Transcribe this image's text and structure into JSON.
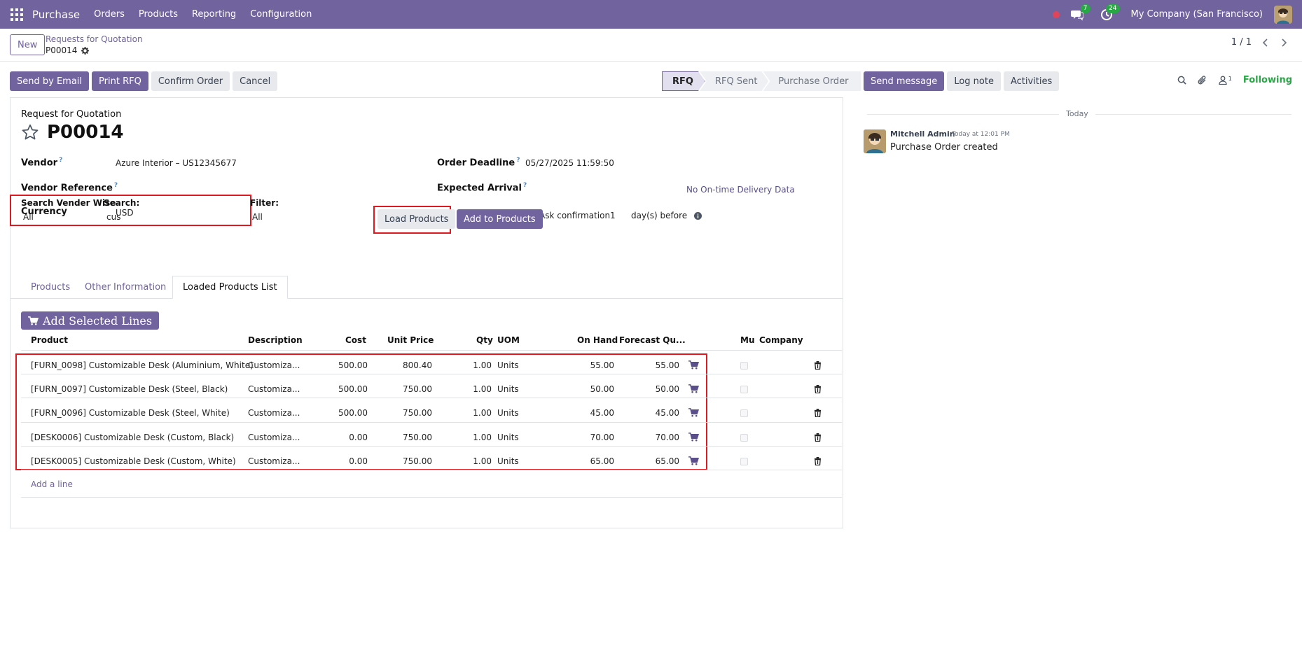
{
  "app": {
    "name": "Purchase",
    "menu": [
      "Orders",
      "Products",
      "Reporting",
      "Configuration"
    ],
    "company": "My Company (San Francisco)",
    "messages_count": "7",
    "activities_count": "24"
  },
  "control": {
    "new_label": "New",
    "breadcrumb_parent": "Requests for Quotation",
    "breadcrumb_current": "P00014",
    "pager": "1 / 1"
  },
  "actions": {
    "send_email": "Send by Email",
    "print_rfq": "Print RFQ",
    "confirm": "Confirm Order",
    "cancel": "Cancel"
  },
  "status_steps": [
    "RFQ",
    "RFQ Sent",
    "Purchase Order"
  ],
  "form": {
    "subtitle": "Request for Quotation",
    "title": "P00014",
    "vendor_label": "Vendor",
    "vendor_value": "Azure Interior – US12345677",
    "vendor_ref_label": "Vendor Reference",
    "currency_label": "Currency",
    "currency_value": "USD",
    "order_deadline_label": "Order Deadline",
    "order_deadline_value": "05/27/2025 11:59:50",
    "expected_arrival_label": "Expected Arrival",
    "delivery_data": "No On-time Delivery Data",
    "ask_confirmation": "Ask confirmation",
    "ask_days": "1",
    "days_before": "day(s) before",
    "search_vendor_label": "Search Vender Wise",
    "search_vendor_value": "All",
    "search_label": "Search:",
    "search_value": "cus",
    "filter_label": "Filter:",
    "filter_value": "All",
    "load_products": "Load Products",
    "add_to_products": "Add to Products"
  },
  "tabs": [
    "Products",
    "Other Information",
    "Loaded Products List"
  ],
  "add_selected_lines": "Add Selected Lines",
  "table": {
    "headers": [
      "Product",
      "Description",
      "Cost",
      "Unit Price",
      "Qty",
      "UOM",
      "On Hand",
      "Forecast Qu...",
      "Mu",
      "Company"
    ],
    "rows": [
      {
        "product": "[FURN_0098] Customizable Desk (Aluminium, White)",
        "description": "Customiza...",
        "cost": "500.00",
        "unit_price": "800.40",
        "qty": "1.00",
        "uom": "Units",
        "on_hand": "55.00",
        "forecast": "55.00"
      },
      {
        "product": "[FURN_0097] Customizable Desk (Steel, Black)",
        "description": "Customiza...",
        "cost": "500.00",
        "unit_price": "750.00",
        "qty": "1.00",
        "uom": "Units",
        "on_hand": "50.00",
        "forecast": "50.00"
      },
      {
        "product": "[FURN_0096] Customizable Desk (Steel, White)",
        "description": "Customiza...",
        "cost": "500.00",
        "unit_price": "750.00",
        "qty": "1.00",
        "uom": "Units",
        "on_hand": "45.00",
        "forecast": "45.00"
      },
      {
        "product": "[DESK0006] Customizable Desk (Custom, Black)",
        "description": "Customiza...",
        "cost": "0.00",
        "unit_price": "750.00",
        "qty": "1.00",
        "uom": "Units",
        "on_hand": "70.00",
        "forecast": "70.00"
      },
      {
        "product": "[DESK0005] Customizable Desk (Custom, White)",
        "description": "Customiza...",
        "cost": "0.00",
        "unit_price": "750.00",
        "qty": "1.00",
        "uom": "Units",
        "on_hand": "65.00",
        "forecast": "65.00"
      }
    ],
    "add_line": "Add a line"
  },
  "chatter": {
    "send_message": "Send message",
    "log_note": "Log note",
    "activities": "Activities",
    "followers_count": "1",
    "following": "Following",
    "today": "Today",
    "author": "Mitchell Admin",
    "date": "Today at 12:01 PM",
    "body": "Purchase Order created"
  },
  "colors": {
    "brand": "#71639e",
    "highlight_box": "#e0181f",
    "following": "#28a745"
  }
}
